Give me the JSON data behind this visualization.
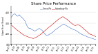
{
  "title": "Share Price Performance",
  "legend_tesco": "Tesco Plc",
  "legend_sainsbury": "Sainsbury Plc",
  "tesco_color": "#4472c4",
  "sainsbury_color": "#cc0000",
  "ylabel": "Share Price (Pence)",
  "background_color": "#ffffff",
  "ylim": [
    100,
    460
  ],
  "yticks": [
    100,
    200,
    300,
    400
  ],
  "tesco_values": [
    355,
    365,
    375,
    382,
    390,
    385,
    375,
    370,
    368,
    372,
    378,
    370,
    360,
    355,
    348,
    340,
    330,
    318,
    300,
    280,
    265,
    258,
    250,
    255,
    248,
    242,
    238,
    235,
    230,
    228,
    232,
    238,
    242,
    248,
    252,
    248,
    242,
    238,
    230,
    220,
    210,
    200,
    192,
    188,
    185,
    190,
    195,
    200,
    205,
    210,
    215,
    220,
    228,
    235,
    242,
    248,
    252,
    258,
    265,
    270,
    275,
    280,
    285,
    290,
    292,
    288,
    282,
    278,
    272,
    268,
    265,
    260,
    255,
    250,
    248,
    245,
    240,
    238,
    235,
    230,
    225,
    220,
    215,
    210,
    205,
    200,
    195,
    192,
    188,
    185,
    182,
    180,
    175,
    172,
    170,
    168,
    165,
    162,
    160,
    158,
    155,
    152,
    150,
    148
  ],
  "sainsbury_values": [
    285,
    278,
    272,
    265,
    258,
    252,
    245,
    238,
    232,
    228,
    222,
    215,
    208,
    202,
    198,
    192,
    188,
    185,
    182,
    178,
    175,
    172,
    170,
    168,
    165,
    162,
    160,
    158,
    162,
    165,
    168,
    172,
    178,
    182,
    188,
    192,
    198,
    205,
    212,
    218,
    225,
    232,
    238,
    245,
    252,
    258,
    265,
    270,
    275,
    282,
    288,
    295,
    302,
    308,
    315,
    322,
    328,
    335,
    340,
    345,
    350,
    355,
    358,
    360,
    355,
    350,
    345,
    340,
    335,
    328,
    322,
    315,
    308,
    302,
    295,
    290,
    285,
    280,
    278,
    282,
    285,
    288,
    285,
    280,
    275,
    268,
    262,
    255,
    248,
    242,
    235,
    228,
    222,
    215,
    208,
    202,
    198,
    195,
    192,
    188,
    185,
    182,
    178,
    175
  ],
  "x_tick_positions": [
    0,
    6,
    12,
    18,
    24,
    30,
    36,
    42,
    48,
    54,
    60,
    66,
    72,
    78,
    84,
    90,
    96,
    102
  ],
  "x_tick_labels": [
    "Jan-07",
    "Jul-07",
    "Jan-08",
    "Jul-08",
    "Jan-09",
    "Jul-09",
    "Jan-10",
    "Jul-10",
    "Jan-11",
    "Jul-11",
    "Jan-12",
    "Jul-12",
    "Jan-13",
    "Jul-13",
    "Jan-14",
    "Jul-14",
    "Jan-15",
    "Jul-15"
  ]
}
